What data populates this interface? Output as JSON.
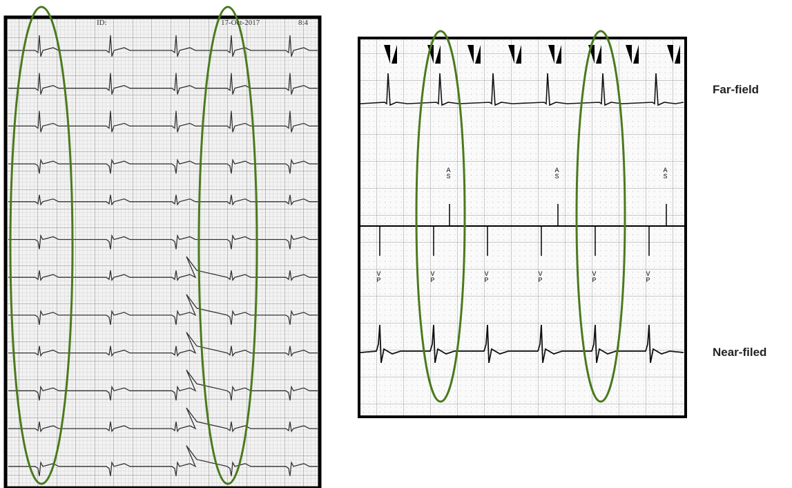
{
  "left_strip": {
    "header": [
      "ID:",
      "17-Oct-2017",
      "8:4"
    ]
  },
  "right_strip": {
    "atrial_markers": [
      "AS",
      "AS",
      "AS"
    ],
    "ventricular_markers": [
      "VP",
      "VP",
      "VP",
      "VP",
      "VP",
      "VP"
    ]
  },
  "labels": {
    "far_field": "Far-field",
    "near_field": "Near-filed"
  }
}
